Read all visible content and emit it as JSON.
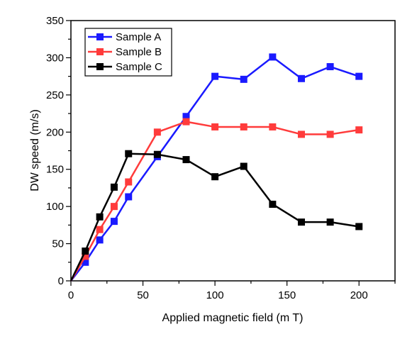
{
  "chart_data": {
    "type": "line",
    "xlabel": "Applied magnetic field (m T)",
    "ylabel": "DW speed (m/s)",
    "xlim": [
      0,
      225
    ],
    "ylim": [
      0,
      350
    ],
    "xticks": [
      0,
      50,
      100,
      150,
      200
    ],
    "yticks": [
      0,
      50,
      100,
      150,
      200,
      250,
      300,
      350
    ],
    "grid": false,
    "legend_position": "top-left",
    "series": [
      {
        "name": "Sample A",
        "color": "#1a1aff",
        "marker": "square",
        "x": [
          0,
          10,
          20,
          30,
          40,
          60,
          80,
          100,
          120,
          140,
          160,
          180,
          200
        ],
        "y": [
          0,
          25,
          55,
          80,
          113,
          167,
          221,
          275,
          271,
          301,
          272,
          288,
          275
        ]
      },
      {
        "name": "Sample B",
        "color": "#ff3b3b",
        "marker": "square",
        "x": [
          0,
          10,
          20,
          30,
          40,
          60,
          80,
          100,
          120,
          140,
          160,
          180,
          200
        ],
        "y": [
          0,
          33,
          69,
          100,
          133,
          200,
          214,
          207,
          207,
          207,
          197,
          197,
          203
        ]
      },
      {
        "name": "Sample C",
        "color": "#000000",
        "marker": "square",
        "x": [
          0,
          10,
          20,
          30,
          40,
          60,
          80,
          100,
          120,
          140,
          160,
          180,
          200
        ],
        "y": [
          0,
          40,
          86,
          126,
          171,
          170,
          163,
          140,
          154,
          103,
          79,
          79,
          73
        ]
      }
    ]
  }
}
